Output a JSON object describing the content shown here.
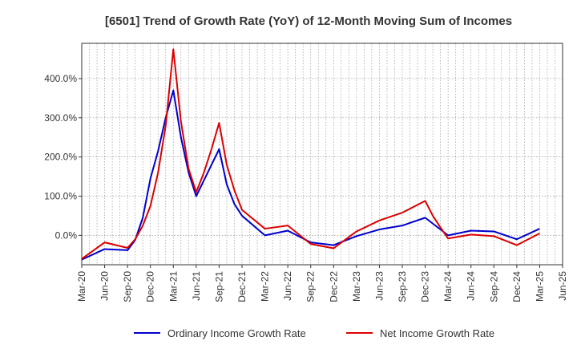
{
  "chart_data": {
    "type": "line",
    "title": "[6501]  Trend of Growth Rate (YoY) of 12-Month Moving Sum of Incomes",
    "xlabel": "",
    "ylabel": "",
    "x_ticks": [
      "Mar-20",
      "Jun-20",
      "Sep-20",
      "Dec-20",
      "Mar-21",
      "Jun-21",
      "Sep-21",
      "Dec-21",
      "Mar-22",
      "Jun-22",
      "Sep-22",
      "Dec-22",
      "Mar-23",
      "Jun-23",
      "Sep-23",
      "Dec-23",
      "Mar-24",
      "Jun-24",
      "Sep-24",
      "Dec-24",
      "Mar-25",
      "Jun-25"
    ],
    "y_ticks": [
      0,
      100,
      200,
      300,
      400
    ],
    "y_tick_labels": [
      "0.0%",
      "100.0%",
      "200.0%",
      "300.0%",
      "400.0%"
    ],
    "ylim": [
      -75,
      490
    ],
    "x_range_months": [
      0,
      63
    ],
    "grid": true,
    "legend_position": "bottom",
    "series": [
      {
        "name": "Ordinary Income Growth Rate",
        "color": "#0000cc",
        "points": [
          [
            0,
            -62
          ],
          [
            3,
            -35
          ],
          [
            6,
            -38
          ],
          [
            7,
            -12
          ],
          [
            8,
            45
          ],
          [
            9,
            145
          ],
          [
            10,
            215
          ],
          [
            11,
            300
          ],
          [
            12,
            370
          ],
          [
            13,
            250
          ],
          [
            14,
            160
          ],
          [
            15,
            100
          ],
          [
            16,
            140
          ],
          [
            17,
            180
          ],
          [
            18,
            220
          ],
          [
            19,
            130
          ],
          [
            20,
            80
          ],
          [
            21,
            50
          ],
          [
            24,
            0
          ],
          [
            27,
            12
          ],
          [
            30,
            -18
          ],
          [
            33,
            -25
          ],
          [
            36,
            -2
          ],
          [
            39,
            15
          ],
          [
            42,
            25
          ],
          [
            45,
            45
          ],
          [
            48,
            0
          ],
          [
            51,
            12
          ],
          [
            54,
            10
          ],
          [
            57,
            -10
          ],
          [
            60,
            17
          ]
        ]
      },
      {
        "name": "Net Income Growth Rate",
        "color": "#dd0000",
        "points": [
          [
            0,
            -60
          ],
          [
            3,
            -18
          ],
          [
            6,
            -32
          ],
          [
            7,
            -10
          ],
          [
            8,
            25
          ],
          [
            9,
            75
          ],
          [
            10,
            160
          ],
          [
            11,
            280
          ],
          [
            12,
            475
          ],
          [
            13,
            290
          ],
          [
            14,
            170
          ],
          [
            15,
            110
          ],
          [
            16,
            160
          ],
          [
            17,
            220
          ],
          [
            18,
            287
          ],
          [
            19,
            180
          ],
          [
            20,
            115
          ],
          [
            21,
            65
          ],
          [
            24,
            17
          ],
          [
            27,
            25
          ],
          [
            30,
            -22
          ],
          [
            33,
            -33
          ],
          [
            36,
            10
          ],
          [
            39,
            38
          ],
          [
            42,
            58
          ],
          [
            45,
            88
          ],
          [
            46,
            50
          ],
          [
            47,
            20
          ],
          [
            48,
            -8
          ],
          [
            51,
            2
          ],
          [
            54,
            -2
          ],
          [
            57,
            -25
          ],
          [
            60,
            5
          ]
        ]
      }
    ]
  }
}
